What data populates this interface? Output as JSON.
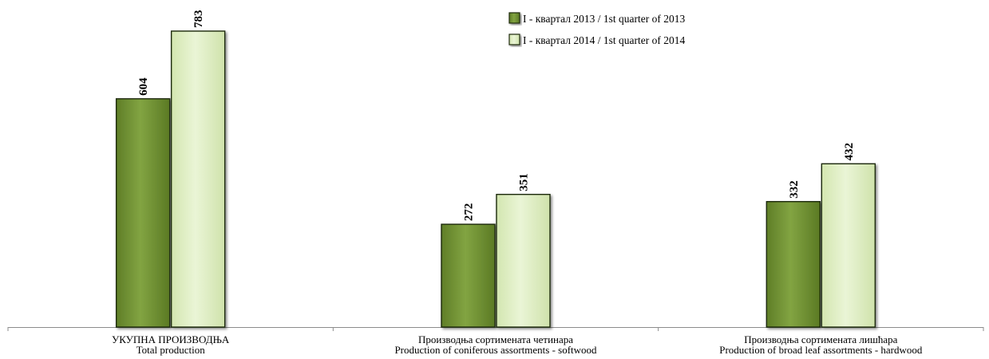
{
  "chart_data": {
    "type": "bar",
    "title": "",
    "xlabel": "",
    "ylabel": "",
    "ylim": [
      0,
      800
    ],
    "grid": false,
    "legend_position": "top-center",
    "categories": [
      [
        "УКУПНА ПРОИЗВОДЊА",
        "Total production"
      ],
      [
        "Производња сортимената четинара",
        "Production of coniferous assortments - softwood"
      ],
      [
        "Производња сортимената лишћара",
        "Production of broad leaf assortments - hardwood"
      ]
    ],
    "series": [
      {
        "name": "I - квартал 2013 / 1st quarter of 2013",
        "values": [
          604,
          272,
          332
        ],
        "color": "#7a9a3a"
      },
      {
        "name": "I - квартал 2014 / 1st quarter of 2014",
        "values": [
          783,
          351,
          432
        ],
        "color": "#e2f0c8"
      }
    ]
  }
}
